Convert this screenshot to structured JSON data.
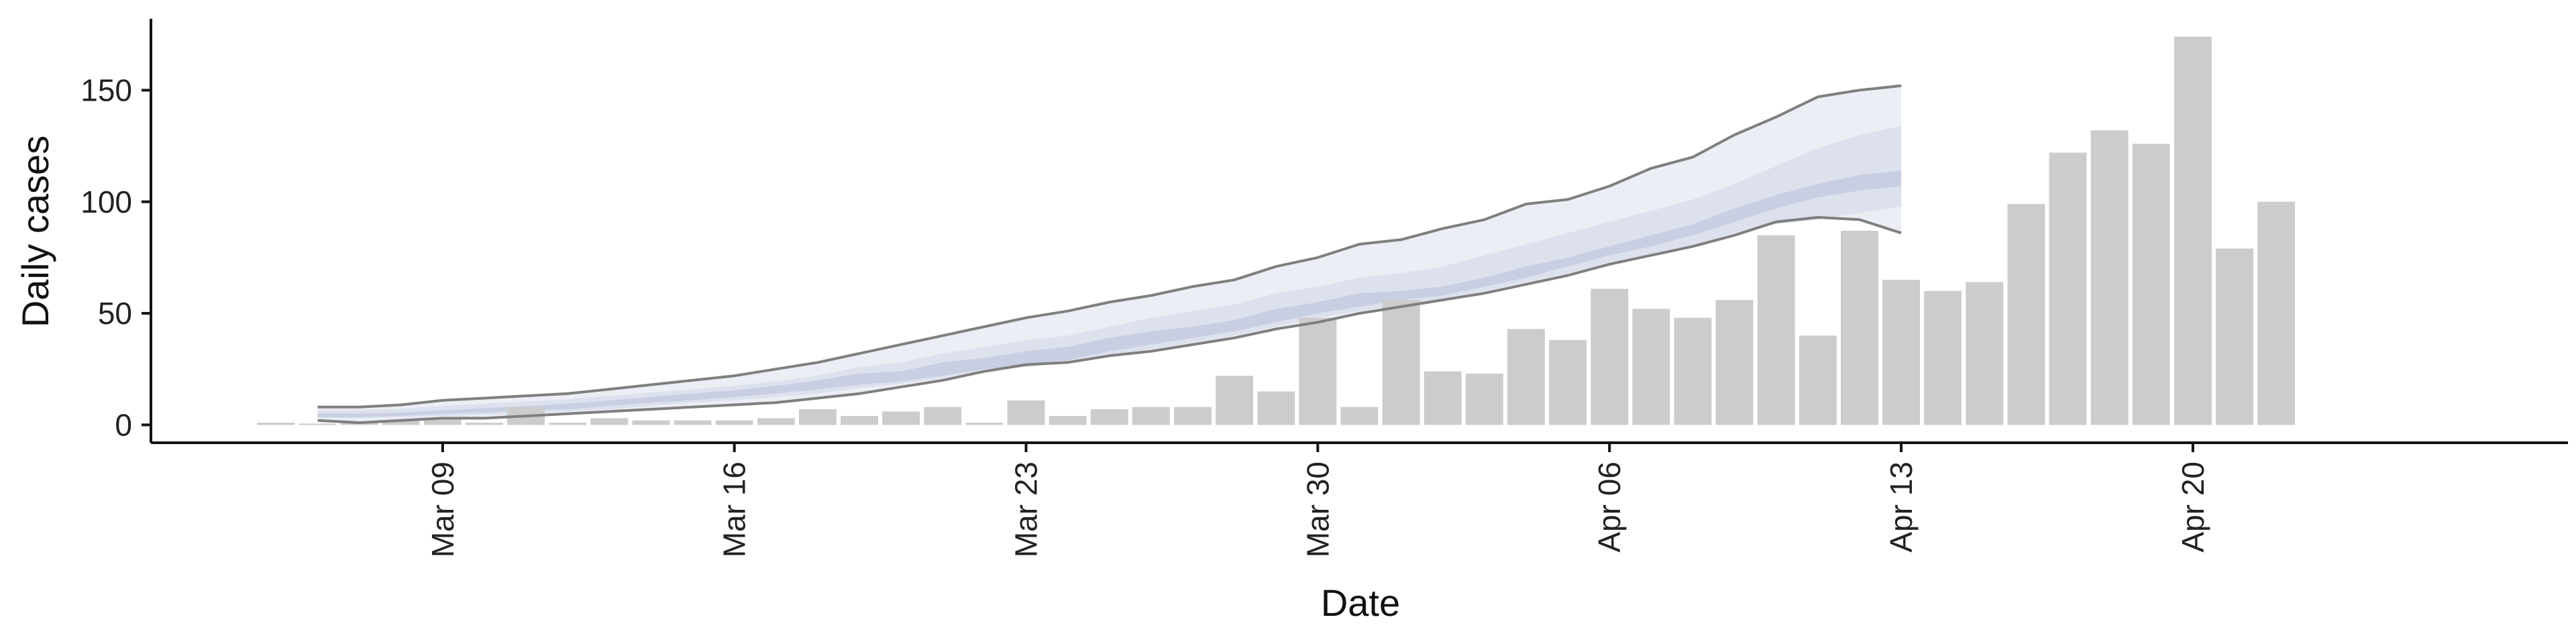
{
  "chart_data": {
    "type": "bar",
    "xlabel": "Date",
    "ylabel": "Daily cases",
    "ylim": [
      -8,
      182
    ],
    "yticks": [
      0,
      50,
      100,
      150
    ],
    "x_tick_labels": [
      "Mar 09",
      "Mar 16",
      "Mar 23",
      "Mar 30",
      "Apr 06",
      "Apr 13",
      "Apr 20"
    ],
    "x_tick_dates": [
      "2020-03-09",
      "2020-03-16",
      "2020-03-23",
      "2020-03-30",
      "2020-04-06",
      "2020-04-13",
      "2020-04-20"
    ],
    "xlim": [
      "2020-03-02",
      "2020-04-29"
    ],
    "grid": false,
    "legend": "none",
    "colors": {
      "bars": "#cccccc",
      "band_outer": "#eceef5",
      "band_middle": "#dde1ee",
      "band_inner": "#c9cfe2",
      "outer_lines": "#7f7f7f",
      "axis": "#111111"
    },
    "observed": {
      "dates": [
        "2020-03-05",
        "2020-03-06",
        "2020-03-07",
        "2020-03-08",
        "2020-03-09",
        "2020-03-10",
        "2020-03-11",
        "2020-03-12",
        "2020-03-13",
        "2020-03-14",
        "2020-03-15",
        "2020-03-16",
        "2020-03-17",
        "2020-03-18",
        "2020-03-19",
        "2020-03-20",
        "2020-03-21",
        "2020-03-22",
        "2020-03-23",
        "2020-03-24",
        "2020-03-25",
        "2020-03-26",
        "2020-03-27",
        "2020-03-28",
        "2020-03-29",
        "2020-03-30",
        "2020-03-31",
        "2020-04-01",
        "2020-04-02",
        "2020-04-03",
        "2020-04-04",
        "2020-04-05",
        "2020-04-06",
        "2020-04-07",
        "2020-04-08",
        "2020-04-09",
        "2020-04-10",
        "2020-04-11",
        "2020-04-12",
        "2020-04-13",
        "2020-04-14",
        "2020-04-15",
        "2020-04-16",
        "2020-04-17",
        "2020-04-18",
        "2020-04-19",
        "2020-04-20",
        "2020-04-21",
        "2020-04-22"
      ],
      "values": [
        1,
        0,
        1,
        2,
        3,
        1,
        8,
        1,
        3,
        2,
        2,
        2,
        3,
        7,
        4,
        6,
        8,
        1,
        11,
        4,
        7,
        8,
        8,
        22,
        15,
        48,
        8,
        56,
        24,
        23,
        43,
        38,
        61,
        52,
        48,
        56,
        85,
        40,
        87,
        65,
        60,
        64,
        99,
        122,
        132,
        126,
        174,
        79,
        100
      ]
    },
    "estimate": {
      "dates": [
        "2020-03-06",
        "2020-03-07",
        "2020-03-08",
        "2020-03-09",
        "2020-03-10",
        "2020-03-11",
        "2020-03-12",
        "2020-03-13",
        "2020-03-14",
        "2020-03-15",
        "2020-03-16",
        "2020-03-17",
        "2020-03-18",
        "2020-03-19",
        "2020-03-20",
        "2020-03-21",
        "2020-03-22",
        "2020-03-23",
        "2020-03-24",
        "2020-03-25",
        "2020-03-26",
        "2020-03-27",
        "2020-03-28",
        "2020-03-29",
        "2020-03-30",
        "2020-03-31",
        "2020-04-01",
        "2020-04-02",
        "2020-04-03",
        "2020-04-04",
        "2020-04-05",
        "2020-04-06",
        "2020-04-07",
        "2020-04-08",
        "2020-04-09",
        "2020-04-10",
        "2020-04-11",
        "2020-04-12",
        "2020-04-13"
      ],
      "upper90": [
        8,
        8,
        9,
        11,
        12,
        13,
        14,
        16,
        18,
        20,
        22,
        25,
        28,
        32,
        36,
        40,
        44,
        48,
        51,
        55,
        58,
        62,
        65,
        71,
        75,
        81,
        83,
        88,
        92,
        99,
        101,
        107,
        115,
        120,
        130,
        138,
        147,
        150,
        152
      ],
      "upper50": [
        6.5,
        6.5,
        7.2,
        8.5,
        9.5,
        10.5,
        11.5,
        13,
        14.5,
        16,
        17.5,
        19.5,
        22,
        26,
        28,
        32,
        35,
        38,
        40,
        44,
        48,
        51,
        54,
        59,
        62,
        66,
        68,
        71,
        76,
        81,
        86,
        91,
        96,
        101,
        108,
        116,
        124,
        130,
        134
      ],
      "upper20": [
        5,
        5,
        5.5,
        6.5,
        7.5,
        8.5,
        9.5,
        11,
        12.5,
        14,
        15.5,
        17.5,
        20,
        23,
        24,
        28,
        30,
        33,
        35,
        39,
        42,
        44,
        47,
        52,
        55,
        59,
        60,
        62,
        66,
        71,
        75,
        80,
        85,
        90,
        97,
        103,
        108,
        112,
        114
      ],
      "lower20": [
        3.5,
        3.5,
        4,
        5,
        5.5,
        6.5,
        7,
        8.5,
        10,
        11,
        12.5,
        14,
        16,
        18,
        19.5,
        22,
        25,
        27,
        29,
        33,
        36,
        39,
        42,
        46,
        50,
        53,
        56,
        58,
        62,
        66,
        71,
        76,
        80,
        85,
        91,
        97,
        102,
        105,
        107
      ],
      "lower50": [
        3,
        3,
        3.5,
        4,
        4.5,
        5,
        6,
        7,
        8.5,
        10,
        11,
        12.5,
        14,
        16.5,
        18.5,
        21,
        24,
        26,
        28,
        31,
        34,
        37,
        40,
        44,
        48,
        51,
        54,
        56,
        60,
        64,
        68,
        72,
        76,
        80,
        86,
        90,
        92,
        95,
        98
      ],
      "lower90": [
        2,
        1,
        2,
        3,
        3,
        4,
        5,
        6,
        7,
        8,
        9,
        10,
        12,
        14,
        17,
        20,
        24,
        27,
        28,
        31,
        33,
        36,
        39,
        43,
        46,
        50,
        53,
        56,
        59,
        63,
        67,
        72,
        76,
        80,
        85,
        91,
        93,
        92,
        86
      ]
    }
  }
}
